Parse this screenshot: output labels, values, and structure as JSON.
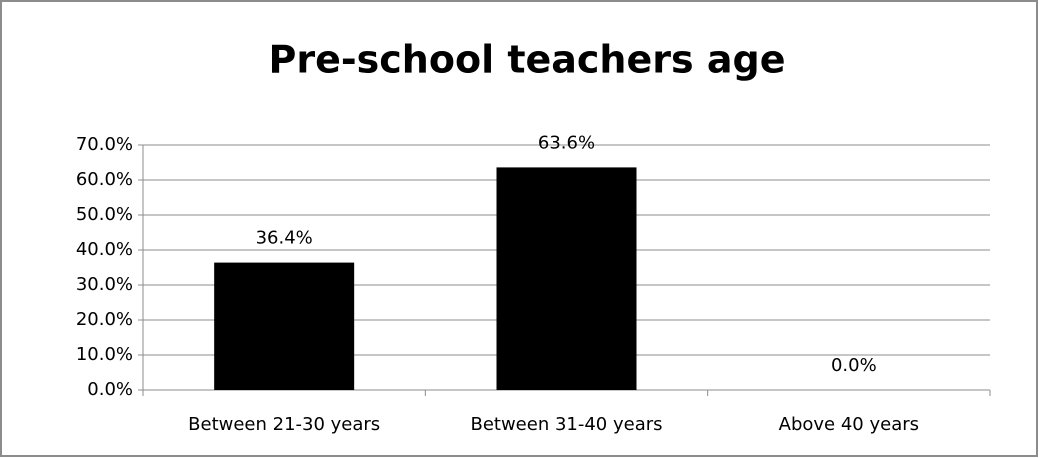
{
  "chart_data": {
    "type": "bar",
    "title": "Pre-school teachers age",
    "categories": [
      "Between 21-30 years",
      "Between 31-40 years",
      "Above 40 years"
    ],
    "values": [
      36.4,
      63.6,
      0.0
    ],
    "value_labels": [
      "36.4%",
      "63.6%",
      "0.0%"
    ],
    "color": "#000000",
    "ylim": [
      0,
      70
    ],
    "yticks": [
      {
        "value": 0,
        "label": "0.0%"
      },
      {
        "value": 10,
        "label": "10.0%"
      },
      {
        "value": 20,
        "label": "20.0%"
      },
      {
        "value": 30,
        "label": "30.0%"
      },
      {
        "value": 40,
        "label": "40.0%"
      },
      {
        "value": 50,
        "label": "50.0%"
      },
      {
        "value": 60,
        "label": "60.0%"
      },
      {
        "value": 70,
        "label": "70.0%"
      }
    ],
    "grid": true
  }
}
